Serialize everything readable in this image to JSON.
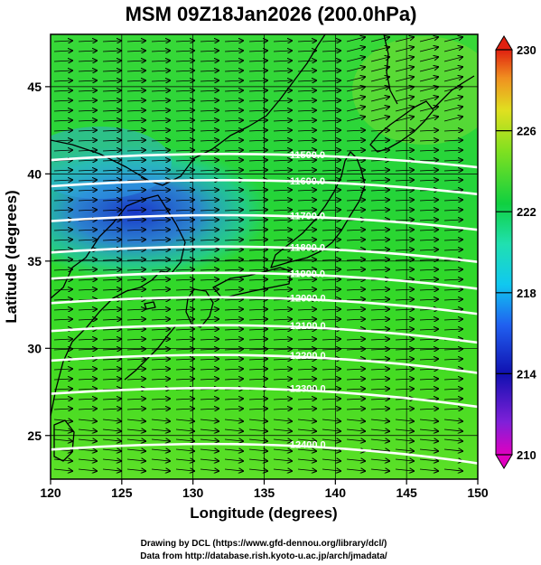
{
  "title": "MSM 09Z18Jan2026 (200.0hPa)",
  "map": {
    "x_label": "Longitude (degrees)",
    "y_label": "Latitude  (degrees)",
    "lon_range": [
      120,
      150
    ],
    "lat_range": [
      22.5,
      48
    ],
    "lon_ticks": [
      "120",
      "125",
      "130",
      "135",
      "140",
      "145",
      "150"
    ],
    "lat_ticks": [
      "25",
      "30",
      "35",
      "40",
      "45"
    ],
    "contours": [
      {
        "label": "11500.0",
        "lat": 41.0
      },
      {
        "label": "11600.0",
        "lat": 39.5
      },
      {
        "label": "11700.0",
        "lat": 37.5
      },
      {
        "label": "11800.0",
        "lat": 35.7
      },
      {
        "label": "11900.0",
        "lat": 34.2
      },
      {
        "label": "12000.0",
        "lat": 32.8
      },
      {
        "label": "12100.0",
        "lat": 31.2
      },
      {
        "label": "12200.0",
        "lat": 29.5
      },
      {
        "label": "12300.0",
        "lat": 27.6
      },
      {
        "label": "12400.0",
        "lat": 24.4
      }
    ],
    "colorbar": {
      "min": 210,
      "max": 230,
      "ticks": [
        "210",
        "214",
        "218",
        "222",
        "226",
        "230"
      ]
    },
    "colors": {
      "cold": "#1a3ed0",
      "mid": "#18d0e0",
      "warm": "#2ed42a",
      "hot": "#c0e020"
    }
  },
  "credits": {
    "line1": "Drawing by DCL (https://www.gfd-dennou.org/library/dcl/)",
    "line2": "Data from http://database.rish.kyoto-u.ac.jp/arch/jmadata/"
  }
}
